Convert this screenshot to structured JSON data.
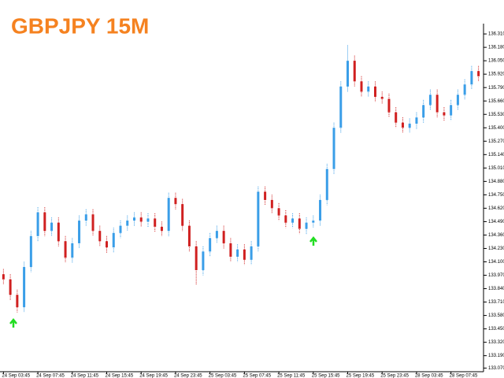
{
  "chart_data": {
    "type": "candlestick",
    "title": "GBPJPY 15M",
    "up_color": "#3a9ee8",
    "down_color": "#d02020",
    "title_color": "#f58220",
    "categories": [
      "24 Sep 03:45",
      null,
      null,
      null,
      null,
      "24 Sep 07:45",
      null,
      null,
      null,
      null,
      "24 Sep 11:45",
      null,
      null,
      null,
      null,
      "24 Sep 15:45",
      null,
      null,
      null,
      null,
      "24 Sep 19:45",
      null,
      null,
      null,
      null,
      "24 Sep 23:45",
      null,
      null,
      null,
      null,
      "25 Sep 03:45",
      null,
      null,
      null,
      null,
      "25 Sep 07:45",
      null,
      null,
      null,
      null,
      "25 Sep 11:45",
      null,
      null,
      null,
      null,
      "25 Sep 15:45",
      null,
      null,
      null,
      null,
      "25 Sep 19:45",
      null,
      null,
      null,
      null,
      "25 Sep 23:45",
      null,
      null,
      null,
      null,
      "28 Sep 03:45",
      null,
      null,
      null,
      null,
      "28 Sep 07:45",
      null,
      null,
      null,
      null
    ],
    "open": [
      133.98,
      133.93,
      133.78,
      133.66,
      134.05,
      134.35,
      134.58,
      134.4,
      134.48,
      134.3,
      134.14,
      134.28,
      134.5,
      134.56,
      134.4,
      134.3,
      134.24,
      134.38,
      134.45,
      134.5,
      134.53,
      134.49,
      134.52,
      134.44,
      134.4,
      134.72,
      134.66,
      134.45,
      134.25,
      134.02,
      134.2,
      134.33,
      134.4,
      134.28,
      134.15,
      134.22,
      134.12,
      134.25,
      134.78,
      134.7,
      134.62,
      134.55,
      134.48,
      134.52,
      134.42,
      134.48,
      134.5,
      134.7,
      135.0,
      135.4,
      135.8,
      136.05,
      135.85,
      135.75,
      135.8,
      135.7,
      135.68,
      135.55,
      135.45,
      135.4,
      135.44,
      135.5,
      135.62,
      135.72,
      135.55,
      135.52,
      135.62,
      135.72,
      135.82,
      135.95
    ],
    "high": [
      134.03,
      133.98,
      133.83,
      134.1,
      134.4,
      134.63,
      134.63,
      134.53,
      134.53,
      134.35,
      134.33,
      134.55,
      134.61,
      134.61,
      134.45,
      134.35,
      134.43,
      134.5,
      134.55,
      134.58,
      134.58,
      134.57,
      134.57,
      134.49,
      134.77,
      134.77,
      134.71,
      134.5,
      134.3,
      134.25,
      134.38,
      134.45,
      134.45,
      134.33,
      134.27,
      134.27,
      134.3,
      134.83,
      134.83,
      134.75,
      134.67,
      134.6,
      134.57,
      134.57,
      134.53,
      134.55,
      134.75,
      135.05,
      135.45,
      135.85,
      136.2,
      136.1,
      135.9,
      135.85,
      135.85,
      135.75,
      135.73,
      135.6,
      135.5,
      135.49,
      135.55,
      135.67,
      135.77,
      135.77,
      135.6,
      135.67,
      135.77,
      135.87,
      136.0,
      136.0
    ],
    "low": [
      133.88,
      133.73,
      133.61,
      133.61,
      134.0,
      134.3,
      134.35,
      134.35,
      134.25,
      134.09,
      134.09,
      134.23,
      134.45,
      134.35,
      134.25,
      134.19,
      134.19,
      134.33,
      134.4,
      134.45,
      134.44,
      134.44,
      134.39,
      134.35,
      134.35,
      134.61,
      134.4,
      134.2,
      133.88,
      133.97,
      134.15,
      134.28,
      134.23,
      134.1,
      134.1,
      134.07,
      134.07,
      134.2,
      134.65,
      134.57,
      134.5,
      134.43,
      134.43,
      134.37,
      134.37,
      134.43,
      134.45,
      134.65,
      134.95,
      135.35,
      135.75,
      135.8,
      135.7,
      135.7,
      135.65,
      135.63,
      135.5,
      135.4,
      135.35,
      135.35,
      135.39,
      135.45,
      135.57,
      135.5,
      135.47,
      135.47,
      135.57,
      135.67,
      135.77,
      135.85
    ],
    "close": [
      133.93,
      133.78,
      133.66,
      134.05,
      134.35,
      134.58,
      134.4,
      134.48,
      134.3,
      134.14,
      134.28,
      134.5,
      134.56,
      134.4,
      134.3,
      134.24,
      134.38,
      134.45,
      134.5,
      134.53,
      134.49,
      134.52,
      134.44,
      134.4,
      134.72,
      134.66,
      134.45,
      134.25,
      134.02,
      134.2,
      134.33,
      134.4,
      134.28,
      134.15,
      134.22,
      134.12,
      134.25,
      134.78,
      134.7,
      134.62,
      134.55,
      134.48,
      134.52,
      134.42,
      134.48,
      134.5,
      134.7,
      135.0,
      135.4,
      135.8,
      136.05,
      135.85,
      135.75,
      135.8,
      135.7,
      135.68,
      135.55,
      135.45,
      135.4,
      135.44,
      135.5,
      135.62,
      135.72,
      135.55,
      135.52,
      135.62,
      135.72,
      135.82,
      135.95,
      135.9
    ],
    "ylim": [
      133.05,
      136.41
    ],
    "yticks": [
      {
        "value": 136.31,
        "label": "136.310"
      },
      {
        "value": 136.18,
        "label": "136.180"
      },
      {
        "value": 136.05,
        "label": "136.050"
      },
      {
        "value": 135.92,
        "label": "135.920"
      },
      {
        "value": 135.79,
        "label": "135.790"
      },
      {
        "value": 135.66,
        "label": "135.660"
      },
      {
        "value": 135.53,
        "label": "135.530"
      },
      {
        "value": 135.4,
        "label": "135.400"
      },
      {
        "value": 135.27,
        "label": "135.270"
      },
      {
        "value": 135.14,
        "label": "135.140"
      },
      {
        "value": 135.01,
        "label": "135.010"
      },
      {
        "value": 134.88,
        "label": "134.880"
      },
      {
        "value": 134.75,
        "label": "134.750"
      },
      {
        "value": 134.62,
        "label": "134.620"
      },
      {
        "value": 134.49,
        "label": "134.490"
      },
      {
        "value": 134.36,
        "label": "134.360"
      },
      {
        "value": 134.23,
        "label": "134.230"
      },
      {
        "value": 134.1,
        "label": "134.100"
      },
      {
        "value": 133.97,
        "label": "133.970"
      },
      {
        "value": 133.84,
        "label": "133.840"
      },
      {
        "value": 133.71,
        "label": "133.710"
      },
      {
        "value": 133.58,
        "label": "133.580"
      },
      {
        "value": 133.45,
        "label": "133.450"
      },
      {
        "value": 133.32,
        "label": "133.320"
      },
      {
        "value": 133.19,
        "label": "133.190"
      },
      {
        "value": 133.07,
        "label": "133.070"
      }
    ],
    "grid": false
  }
}
